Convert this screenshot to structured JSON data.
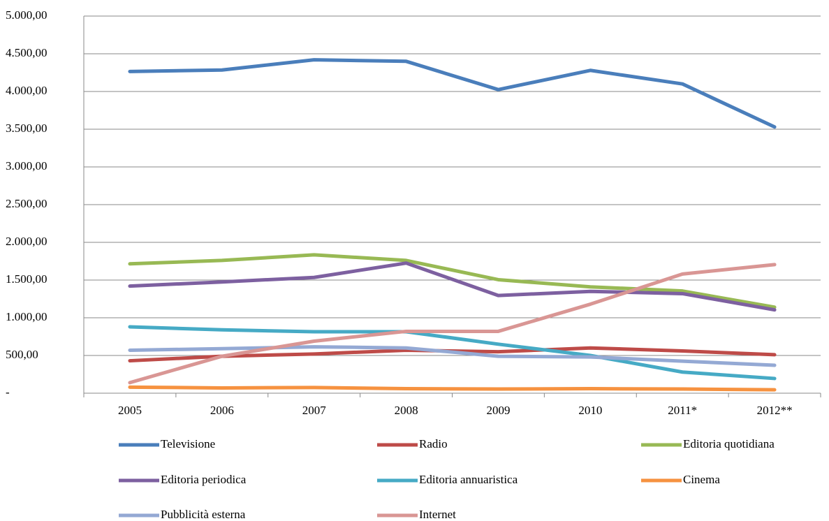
{
  "chart_data": {
    "type": "line",
    "categories": [
      "2005",
      "2006",
      "2007",
      "2008",
      "2009",
      "2010",
      "2011*",
      "2012**"
    ],
    "ylim": [
      0,
      5000
    ],
    "yticks": [
      {
        "value": 0,
        "label": "-"
      },
      {
        "value": 500,
        "label": "500,00"
      },
      {
        "value": 1000,
        "label": "1.000,00"
      },
      {
        "value": 1500,
        "label": "1.500,00"
      },
      {
        "value": 2000,
        "label": "2.000,00"
      },
      {
        "value": 2500,
        "label": "2.500,00"
      },
      {
        "value": 3000,
        "label": "3.000,00"
      },
      {
        "value": 3500,
        "label": "3.500,00"
      },
      {
        "value": 4000,
        "label": "4.000,00"
      },
      {
        "value": 4500,
        "label": "4.500,00"
      },
      {
        "value": 5000,
        "label": "5.000,00"
      }
    ],
    "grid": true,
    "legend": "bottom",
    "series": [
      {
        "name": "Televisione",
        "color": "#4a7ebb",
        "values": [
          4265,
          4285,
          4420,
          4400,
          4025,
          4280,
          4100,
          3530
        ]
      },
      {
        "name": "Radio",
        "color": "#be4b48",
        "values": [
          430,
          490,
          520,
          570,
          550,
          600,
          560,
          510
        ]
      },
      {
        "name": "Editoria quotidiana",
        "color": "#98b954",
        "values": [
          1715,
          1760,
          1835,
          1760,
          1505,
          1410,
          1355,
          1140
        ]
      },
      {
        "name": "Editoria periodica",
        "color": "#7d60a0",
        "values": [
          1420,
          1475,
          1535,
          1725,
          1295,
          1350,
          1320,
          1105
        ]
      },
      {
        "name": "Editoria annuaristica",
        "color": "#46aac5",
        "values": [
          880,
          840,
          815,
          815,
          650,
          500,
          280,
          195
        ]
      },
      {
        "name": "Cinema",
        "color": "#f69240",
        "values": [
          80,
          70,
          75,
          60,
          55,
          60,
          55,
          45
        ]
      },
      {
        "name": "Pubblicità esterna",
        "color": "#94a9d4",
        "values": [
          570,
          590,
          615,
          600,
          490,
          480,
          425,
          370
        ]
      },
      {
        "name": "Internet",
        "color": "#d99694",
        "values": [
          140,
          490,
          690,
          820,
          820,
          1180,
          1580,
          1705
        ]
      }
    ]
  }
}
